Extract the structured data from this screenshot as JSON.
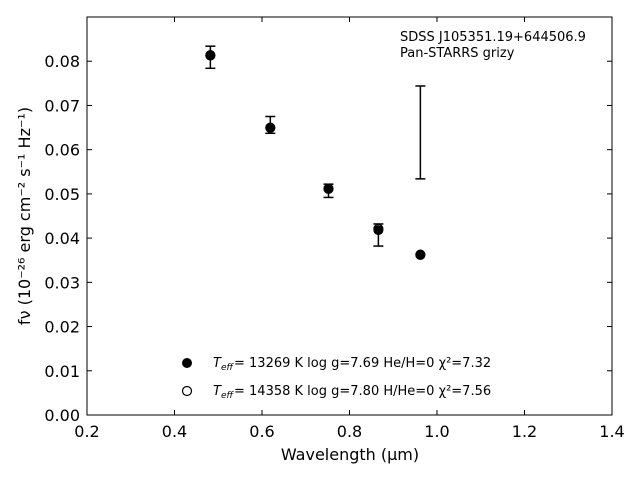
{
  "chart_data": {
    "type": "scatter",
    "title": "",
    "annotation_lines": [
      "SDSS J105351.19+644506.9",
      "Pan-STARRS grizy"
    ],
    "xlabel": "Wavelength (μm)",
    "ylabel": "fν (10⁻²⁶ erg cm⁻² s⁻¹ Hz⁻¹)",
    "xlim": [
      0.2,
      1.4
    ],
    "ylim": [
      0.0,
      0.09
    ],
    "xticks": [
      0.2,
      0.4,
      0.6,
      0.8,
      1.0,
      1.2,
      1.4
    ],
    "xtick_labels": [
      "0.2",
      "0.4",
      "0.6",
      "0.8",
      "1.0",
      "1.2",
      "1.4"
    ],
    "yticks": [
      0.0,
      0.01,
      0.02,
      0.03,
      0.04,
      0.05,
      0.06,
      0.07,
      0.08
    ],
    "ytick_labels": [
      "0.00",
      "0.01",
      "0.02",
      "0.03",
      "0.04",
      "0.05",
      "0.06",
      "0.07",
      "0.08"
    ],
    "grid": false,
    "observed": {
      "x": [
        0.482,
        0.619,
        0.752,
        0.866,
        0.962
      ],
      "y": [
        0.0809,
        0.0655,
        0.0508,
        0.0408,
        0.0639
      ],
      "yerr_low": [
        0.0025,
        0.0018,
        0.0016,
        0.0026,
        0.0105
      ],
      "yerr_high": [
        0.0025,
        0.002,
        0.0014,
        0.0024,
        0.0105
      ]
    },
    "series": [
      {
        "legend": "= 13269 K  log g=7.69  He/H=0  χ²=7.32",
        "marker": "filled-circle",
        "x": [
          0.482,
          0.619,
          0.752,
          0.866,
          0.962
        ],
        "y": [
          0.0814,
          0.0649,
          0.0511,
          0.0418,
          0.0363
        ]
      },
      {
        "legend": "= 14358 K  log g=7.80  H/He=0  χ²=7.56",
        "marker": "open-circle",
        "x": [
          0.482,
          0.619,
          0.752,
          0.866,
          0.962
        ],
        "y": [
          0.0813,
          0.065,
          0.0512,
          0.0421,
          0.0362
        ]
      }
    ],
    "legend_position": "lower-center"
  }
}
